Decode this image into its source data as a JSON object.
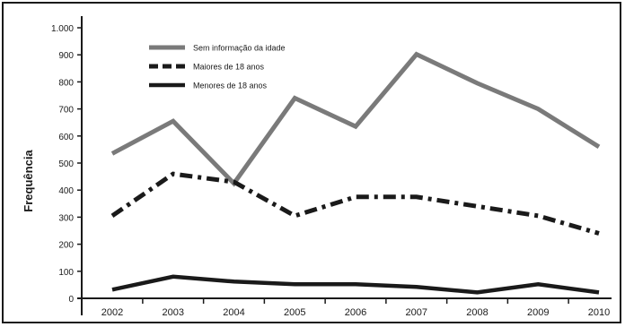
{
  "chart_data": {
    "type": "line",
    "title": "",
    "xlabel": "",
    "ylabel": "Frequência",
    "categories": [
      "2002",
      "2003",
      "2004",
      "2005",
      "2006",
      "2007",
      "2008",
      "2009",
      "2010"
    ],
    "ylim": [
      0,
      1000
    ],
    "yticks": [
      0,
      100,
      200,
      300,
      400,
      500,
      600,
      700,
      800,
      900,
      1000
    ],
    "ytick_labels": [
      "0",
      "100",
      "200",
      "300",
      "400",
      "500",
      "600",
      "700",
      "800",
      "900",
      "1.000"
    ],
    "grid": false,
    "legend_position": "top-left",
    "series": [
      {
        "name": "Sem informação da idade",
        "color": "#7a7a7a",
        "style": "solid",
        "values": [
          535,
          655,
          425,
          740,
          635,
          902,
          795,
          700,
          560
        ]
      },
      {
        "name": "Maiores de 18 anos",
        "color": "#1a1a1a",
        "style": "dashdot",
        "values": [
          305,
          460,
          430,
          305,
          375,
          375,
          340,
          305,
          240
        ]
      },
      {
        "name": "Menores de 18 anos",
        "color": "#1a1a1a",
        "style": "solid",
        "values": [
          32,
          80,
          62,
          52,
          52,
          42,
          22,
          52,
          22
        ]
      }
    ]
  }
}
